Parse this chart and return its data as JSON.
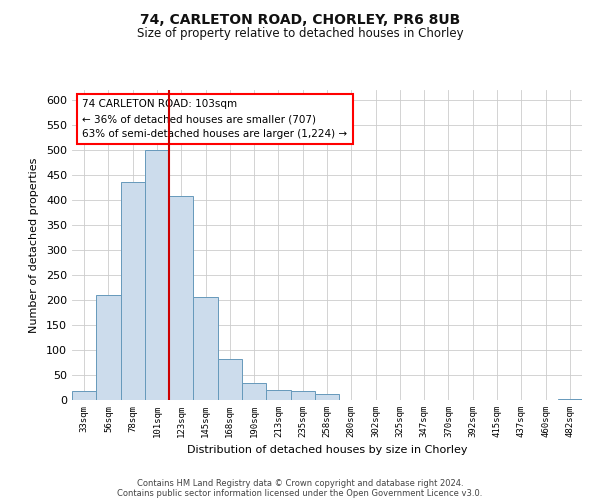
{
  "title": "74, CARLETON ROAD, CHORLEY, PR6 8UB",
  "subtitle": "Size of property relative to detached houses in Chorley",
  "xlabel": "Distribution of detached houses by size in Chorley",
  "ylabel": "Number of detached properties",
  "bar_labels": [
    "33sqm",
    "56sqm",
    "78sqm",
    "101sqm",
    "123sqm",
    "145sqm",
    "168sqm",
    "190sqm",
    "213sqm",
    "235sqm",
    "258sqm",
    "280sqm",
    "302sqm",
    "325sqm",
    "347sqm",
    "370sqm",
    "392sqm",
    "415sqm",
    "437sqm",
    "460sqm",
    "482sqm"
  ],
  "bar_values": [
    18,
    210,
    435,
    500,
    408,
    207,
    83,
    35,
    20,
    18,
    12,
    0,
    0,
    0,
    0,
    0,
    0,
    0,
    0,
    0,
    3
  ],
  "bar_color": "#ccdcec",
  "bar_edge_color": "#6699bb",
  "highlight_color": "#cc0000",
  "ylim": [
    0,
    620
  ],
  "yticks": [
    0,
    50,
    100,
    150,
    200,
    250,
    300,
    350,
    400,
    450,
    500,
    550,
    600
  ],
  "annotation_line1": "74 CARLETON ROAD: 103sqm",
  "annotation_line2": "← 36% of detached houses are smaller (707)",
  "annotation_line3": "63% of semi-detached houses are larger (1,224) →",
  "footer_line1": "Contains HM Land Registry data © Crown copyright and database right 2024.",
  "footer_line2": "Contains public sector information licensed under the Open Government Licence v3.0.",
  "bg_color": "#ffffff",
  "grid_color": "#cccccc"
}
